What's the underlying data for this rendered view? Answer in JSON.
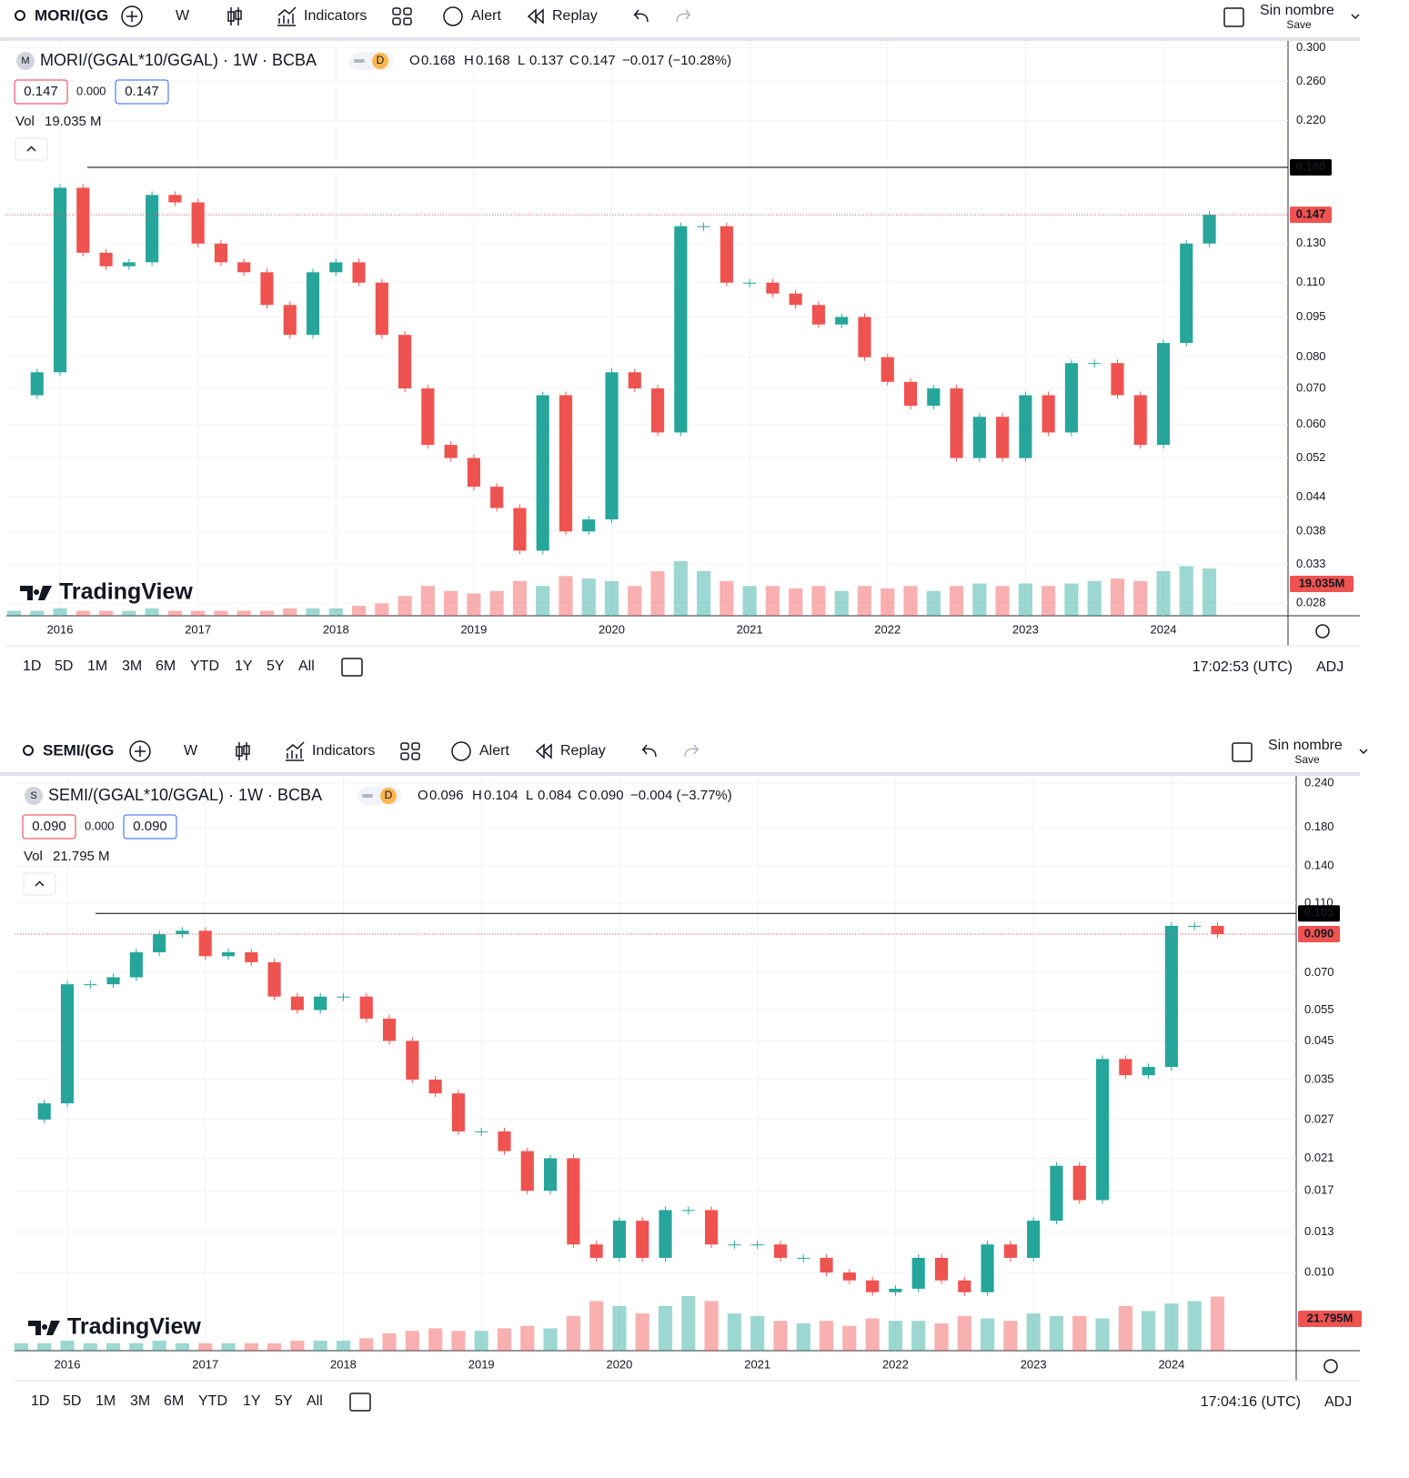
{
  "panels": [
    {
      "search": "MORI/(GG",
      "interval": "W",
      "indicators": "Indicators",
      "alert": "Alert",
      "replay": "Replay",
      "layout_name": "Sin nombre",
      "save": "Save",
      "symbol_icon": "M",
      "badge": "D",
      "ohlc": [
        {
          "key": "O",
          "value": "0.168"
        },
        {
          "key": "H",
          "value": "0.168"
        },
        {
          "key": "L",
          "value": "0.137"
        },
        {
          "key": "C",
          "value": "0.147"
        }
      ],
      "change": "−0.017 (−10.28%)",
      "bid": "0.147",
      "spread": "0.000",
      "ask": "0.147",
      "vol_label": "Vol",
      "vol_value": "19.035 M",
      "logo": "TradingView",
      "ranges": [
        "1D",
        "5D",
        "1M",
        "3M",
        "6M",
        "YTD",
        "1Y",
        "5Y",
        "All"
      ],
      "time": "17:02:53 (UTC)",
      "adj": "ADJ"
    },
    {
      "search": "SEMI/(GG",
      "interval": "W",
      "indicators": "Indicators",
      "alert": "Alert",
      "replay": "Replay",
      "layout_name": "Sin nombre",
      "save": "Save",
      "symbol_icon": "S",
      "badge": "D",
      "ohlc": [
        {
          "key": "O",
          "value": "0.096"
        },
        {
          "key": "H",
          "value": "0.104"
        },
        {
          "key": "L",
          "value": "0.084"
        },
        {
          "key": "C",
          "value": "0.090"
        }
      ],
      "change": "−0.004 (−3.77%)",
      "bid": "0.090",
      "spread": "0.000",
      "ask": "0.090",
      "vol_label": "Vol",
      "vol_value": "21.795 M",
      "logo": "TradingView",
      "ranges": [
        "1D",
        "5D",
        "1M",
        "3M",
        "6M",
        "YTD",
        "1Y",
        "5Y",
        "All"
      ],
      "time": "17:04:16 (UTC)",
      "adj": "ADJ"
    }
  ],
  "chart_data": [
    {
      "type": "candlestick",
      "title": "MORI/(GGAL*10/GGAL) · 1W · BCBA",
      "log_scale": true,
      "grid": true,
      "up_color": "#26a69a",
      "down_color": "#ef5350",
      "categories": [
        null,
        null,
        "2016",
        null,
        null,
        null,
        null,
        null,
        "2017",
        null,
        null,
        null,
        null,
        null,
        "2018",
        null,
        null,
        null,
        null,
        null,
        "2019",
        null,
        null,
        null,
        null,
        null,
        "2020",
        null,
        null,
        null,
        null,
        null,
        "2021",
        null,
        null,
        null,
        null,
        null,
        "2022",
        null,
        null,
        null,
        null,
        null,
        "2023",
        null,
        null,
        null,
        null,
        null,
        "2024",
        null,
        null
      ],
      "values": [
        0.068,
        0.075,
        0.165,
        0.125,
        0.118,
        0.12,
        0.16,
        0.155,
        0.13,
        0.12,
        0.115,
        0.1,
        0.088,
        0.115,
        0.12,
        0.11,
        0.088,
        0.07,
        0.055,
        0.052,
        0.046,
        0.042,
        0.035,
        0.068,
        0.038,
        0.04,
        0.075,
        0.07,
        0.058,
        0.14,
        0.14,
        0.11,
        0.11,
        0.105,
        0.1,
        0.092,
        0.095,
        0.08,
        0.072,
        0.065,
        0.07,
        0.052,
        0.062,
        0.052,
        0.068,
        0.058,
        0.078,
        0.078,
        0.068,
        0.055,
        0.085,
        0.13,
        0.147
      ],
      "volumes": [
        2,
        2,
        3,
        2,
        2,
        2,
        3,
        2,
        2,
        2,
        2,
        2,
        3,
        3,
        3,
        4,
        5,
        8,
        12,
        10,
        9,
        10,
        14,
        12,
        16,
        15,
        14,
        12,
        18,
        22,
        18,
        14,
        12,
        12,
        11,
        12,
        10,
        12,
        11,
        12,
        10,
        12,
        13,
        12,
        13,
        12,
        13,
        14,
        15,
        14,
        18,
        20,
        19.035
      ],
      "volume_label": "19.035M",
      "ylim": [
        0.0265,
        0.309
      ],
      "yticks": [
        {
          "value": 0.3,
          "label": "0.300"
        },
        {
          "value": 0.26,
          "label": "0.260"
        },
        {
          "value": 0.22,
          "label": "0.220"
        },
        {
          "value": 0.13,
          "label": "0.130"
        },
        {
          "value": 0.11,
          "label": "0.110"
        },
        {
          "value": 0.095,
          "label": "0.095"
        },
        {
          "value": 0.08,
          "label": "0.080"
        },
        {
          "value": 0.07,
          "label": "0.070"
        },
        {
          "value": 0.06,
          "label": "0.060"
        },
        {
          "value": 0.052,
          "label": "0.052"
        },
        {
          "value": 0.044,
          "label": "0.044"
        },
        {
          "value": 0.038,
          "label": "0.038"
        },
        {
          "value": 0.033,
          "label": "0.033"
        },
        {
          "value": 0.028,
          "label": "0.028"
        }
      ],
      "hlines": [
        {
          "value": 0.18,
          "label": "0.180",
          "color": "#000000",
          "style": "solid"
        },
        {
          "value": 0.147,
          "label": "0.147",
          "color": "#ef5350",
          "style": "dotted"
        }
      ]
    },
    {
      "type": "candlestick",
      "title": "SEMI/(GGAL*10/GGAL) · 1W · BCBA",
      "log_scale": true,
      "grid": true,
      "up_color": "#26a69a",
      "down_color": "#ef5350",
      "categories": [
        null,
        null,
        "2016",
        null,
        null,
        null,
        null,
        null,
        "2017",
        null,
        null,
        null,
        null,
        null,
        "2018",
        null,
        null,
        null,
        null,
        null,
        "2019",
        null,
        null,
        null,
        null,
        null,
        "2020",
        null,
        null,
        null,
        null,
        null,
        "2021",
        null,
        null,
        null,
        null,
        null,
        "2022",
        null,
        null,
        null,
        null,
        null,
        "2023",
        null,
        null,
        null,
        null,
        null,
        "2024",
        null,
        null
      ],
      "values": [
        0.027,
        0.03,
        0.065,
        0.065,
        0.068,
        0.08,
        0.09,
        0.092,
        0.078,
        0.08,
        0.075,
        0.06,
        0.055,
        0.06,
        0.06,
        0.052,
        0.045,
        0.035,
        0.032,
        0.025,
        0.025,
        0.022,
        0.017,
        0.021,
        0.012,
        0.011,
        0.014,
        0.011,
        0.015,
        0.015,
        0.012,
        0.012,
        0.012,
        0.011,
        0.011,
        0.01,
        0.0095,
        0.0088,
        0.009,
        0.011,
        0.0095,
        0.0088,
        0.012,
        0.011,
        0.014,
        0.02,
        0.016,
        0.04,
        0.036,
        0.038,
        0.095,
        0.095,
        0.09
      ],
      "volumes": [
        3,
        3,
        4,
        3,
        3,
        3,
        4,
        3,
        3,
        3,
        3,
        3,
        4,
        4,
        4,
        5,
        7,
        8,
        9,
        8,
        8,
        9,
        10,
        9,
        14,
        20,
        18,
        15,
        18,
        22,
        20,
        15,
        14,
        12,
        11,
        12,
        10,
        13,
        12,
        12,
        11,
        14,
        13,
        12,
        15,
        14,
        14,
        13,
        18,
        16,
        19,
        20,
        21.795
      ],
      "volume_label": "21.795M",
      "ylim": [
        0.00602,
        0.2516
      ],
      "yticks": [
        {
          "value": 0.24,
          "label": "0.240"
        },
        {
          "value": 0.18,
          "label": "0.180"
        },
        {
          "value": 0.14,
          "label": "0.140"
        },
        {
          "value": 0.11,
          "label": "0.110"
        },
        {
          "value": 0.07,
          "label": "0.070"
        },
        {
          "value": 0.055,
          "label": "0.055"
        },
        {
          "value": 0.045,
          "label": "0.045"
        },
        {
          "value": 0.035,
          "label": "0.035"
        },
        {
          "value": 0.027,
          "label": "0.027"
        },
        {
          "value": 0.021,
          "label": "0.021"
        },
        {
          "value": 0.017,
          "label": "0.017"
        },
        {
          "value": 0.013,
          "label": "0.013"
        },
        {
          "value": 0.01,
          "label": "0.010"
        }
      ],
      "hlines": [
        {
          "value": 0.103,
          "label": "0.103",
          "color": "#000000",
          "style": "solid"
        },
        {
          "value": 0.09,
          "label": "0.090",
          "color": "#ef5350",
          "style": "dotted"
        }
      ]
    }
  ]
}
